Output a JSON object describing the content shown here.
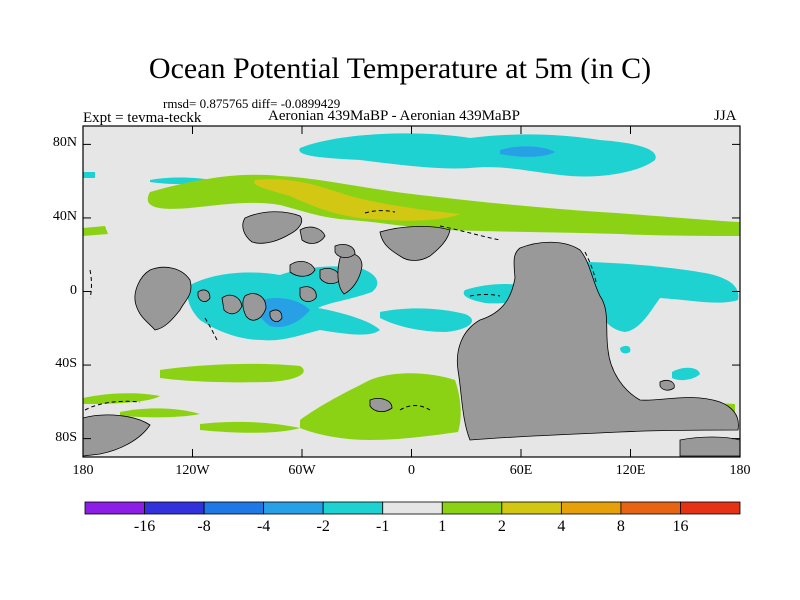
{
  "title": "Ocean Potential Temperature at 5m (in C)",
  "stats": "rmsd= 0.875765 diff= -0.0899429",
  "experiment": "Expt = tevma-teckk",
  "comparison": "Aeronian 439MaBP - Aeronian 439MaBP",
  "season": "JJA",
  "lat_ticks": [
    {
      "lat": 80,
      "label": "80N"
    },
    {
      "lat": 40,
      "label": "40N"
    },
    {
      "lat": 0,
      "label": "0"
    },
    {
      "lat": -40,
      "label": "40S"
    },
    {
      "lat": -80,
      "label": "80S"
    }
  ],
  "lon_ticks": [
    {
      "lon": -180,
      "label": "180"
    },
    {
      "lon": -120,
      "label": "120W"
    },
    {
      "lon": -60,
      "label": "60W"
    },
    {
      "lon": 0,
      "label": "0"
    },
    {
      "lon": 60,
      "label": "60E"
    },
    {
      "lon": 120,
      "label": "120E"
    },
    {
      "lon": 180,
      "label": "180"
    }
  ],
  "colorbar": {
    "colors": [
      "#8c1ee6",
      "#3232dc",
      "#1e78e6",
      "#28a0e6",
      "#1ed2d2",
      "#e6e6e6",
      "#8cd214",
      "#d2c814",
      "#e6a00a",
      "#e66414",
      "#e63214"
    ],
    "labels": [
      "-16",
      "-8",
      "-4",
      "-2",
      "-1",
      "1",
      "2",
      "4",
      "8",
      "16"
    ]
  },
  "colors": {
    "land": "#999999",
    "neutral": "#e6e6e6",
    "light_cyan": "#1ed2d2",
    "mid_blue": "#28a0e6",
    "green": "#8cd214",
    "yellow": "#d2c814"
  }
}
